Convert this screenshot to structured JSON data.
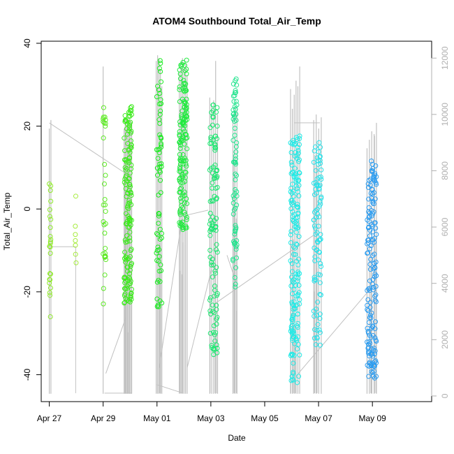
{
  "chart_data": {
    "type": "scatter",
    "title": "ATOM4 Southbound Total_Air_Temp",
    "xlabel": "Date",
    "ylabel": "Total_Air_Temp",
    "x_unit": "days after Apr 26",
    "xlim": [
      0.7,
      15.2
    ],
    "ylim": [
      -46.5,
      40.5
    ],
    "y2lim": [
      -200,
      12600
    ],
    "x_ticks": [
      {
        "value": 1,
        "label": "Apr 27"
      },
      {
        "value": 3,
        "label": "Apr 29"
      },
      {
        "value": 5,
        "label": "May 01"
      },
      {
        "value": 7,
        "label": "May 03"
      },
      {
        "value": 9,
        "label": "May 05"
      },
      {
        "value": 11,
        "label": "May 07"
      },
      {
        "value": 13,
        "label": "May 09"
      }
    ],
    "y_ticks": [
      {
        "value": -40,
        "label": "-40"
      },
      {
        "value": -20,
        "label": "-20"
      },
      {
        "value": 0,
        "label": "0"
      },
      {
        "value": 20,
        "label": "20"
      },
      {
        "value": 40,
        "label": "40"
      }
    ],
    "y2_ticks": [
      {
        "value": 0,
        "label": "0"
      },
      {
        "value": 2000,
        "label": "2000"
      },
      {
        "value": 4000,
        "label": "4000"
      },
      {
        "value": 6000,
        "label": "6000"
      },
      {
        "value": 8000,
        "label": "8000"
      },
      {
        "value": 10000,
        "label": "10000"
      },
      {
        "value": 12000,
        "label": "12000"
      }
    ],
    "grid": false,
    "altitude_color": "#c0c0c0",
    "flights": [
      {
        "x0": 1.0,
        "x1": 1.06,
        "tmin": -28,
        "tmax": 9,
        "n": 24,
        "color": "#8fea2a",
        "spikes": [
          9500,
          9800
        ]
      },
      {
        "x0": 1.95,
        "x1": 2.0,
        "tmin": -14,
        "tmax": 4.5,
        "n": 7,
        "color": "#a5ec3c",
        "spikes": []
      },
      {
        "x0": 3.0,
        "x1": 3.1,
        "tmin": -23,
        "tmax": 26,
        "n": 32,
        "color": "#5cea22",
        "spikes": [
          11700
        ]
      },
      {
        "x0": 3.78,
        "x1": 4.06,
        "tmin": -23,
        "tmax": 25,
        "n": 150,
        "color": "#3cea1c",
        "spikes": [
          9500,
          9800,
          9900,
          9600,
          9400,
          9900,
          9800,
          9700
        ]
      },
      {
        "x0": 4.97,
        "x1": 5.18,
        "tmin": -25,
        "tmax": 37,
        "n": 70,
        "color": "#1cea22",
        "spikes": [
          11900,
          12100,
          12000,
          11600,
          11000
        ]
      },
      {
        "x0": 5.83,
        "x1": 6.12,
        "tmin": -5,
        "tmax": 36,
        "n": 150,
        "color": "#22ea40",
        "spikes": [
          11500,
          11700,
          12000,
          11600,
          11800,
          11400
        ]
      },
      {
        "x0": 6.96,
        "x1": 7.25,
        "tmin": -36,
        "tmax": 26,
        "n": 110,
        "color": "#1ce670",
        "spikes": [
          10600,
          10300,
          10500,
          11900,
          10000
        ]
      },
      {
        "x0": 7.82,
        "x1": 7.97,
        "tmin": -19,
        "tmax": 32,
        "n": 70,
        "color": "#22e48e",
        "spikes": [
          10000,
          10300,
          10200
        ]
      },
      {
        "x0": 9.96,
        "x1": 10.3,
        "tmin": -42,
        "tmax": 18,
        "n": 170,
        "color": "#22eae6",
        "spikes": [
          10900,
          10200,
          10700,
          11200,
          11000,
          11700
        ]
      },
      {
        "x0": 10.82,
        "x1": 11.1,
        "tmin": -33,
        "tmax": 17,
        "n": 90,
        "color": "#28e2ea",
        "spikes": [
          9800,
          10000,
          9500,
          9900
        ]
      },
      {
        "x0": 12.8,
        "x1": 13.15,
        "tmin": -42,
        "tmax": 12,
        "n": 160,
        "color": "#2b9cf0",
        "spikes": [
          8800,
          9100,
          9400,
          9300,
          9700
        ]
      }
    ],
    "connector_lines": [
      [
        [
          1.0,
          9700
        ],
        [
          4.0,
          7800
        ]
      ],
      [
        [
          0.98,
          5300
        ],
        [
          1.98,
          5300
        ]
      ],
      [
        [
          1.98,
          5300
        ],
        [
          1.98,
          100
        ]
      ],
      [
        [
          3.05,
          100
        ],
        [
          4.05,
          100
        ]
      ],
      [
        [
          3.1,
          800
        ],
        [
          3.85,
          2800
        ]
      ],
      [
        [
          5.0,
          400
        ],
        [
          5.97,
          100
        ]
      ],
      [
        [
          5.08,
          1000
        ],
        [
          5.95,
          6400
        ]
      ],
      [
        [
          6.0,
          6400
        ],
        [
          6.9,
          6600
        ]
      ],
      [
        [
          6.12,
          1000
        ],
        [
          7.18,
          5100
        ]
      ],
      [
        [
          7.18,
          3300
        ],
        [
          10.8,
          5700
        ]
      ],
      [
        [
          7.6,
          5000
        ],
        [
          7.95,
          4000
        ]
      ],
      [
        [
          10.1,
          9700
        ],
        [
          11.05,
          9700
        ]
      ],
      [
        [
          10.25,
          800
        ],
        [
          13.1,
          4000
        ]
      ]
    ]
  }
}
